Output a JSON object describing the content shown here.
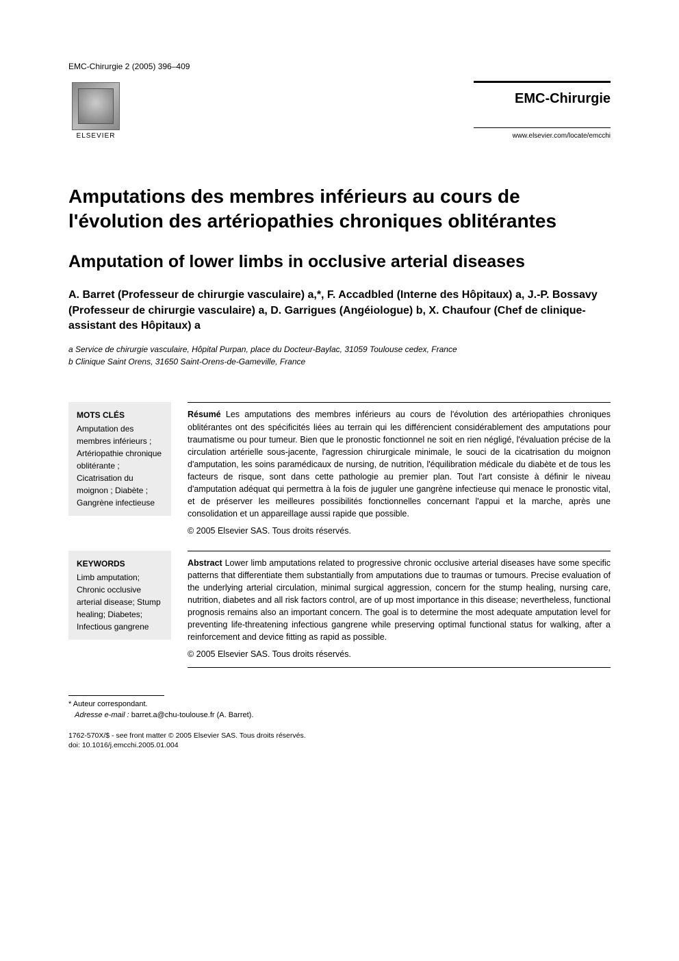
{
  "header": {
    "journal_ref": "EMC-Chirurgie 2 (2005) 396–409",
    "publisher_name": "ELSEVIER",
    "journal_name": "EMC-Chirurgie",
    "journal_url": "www.elsevier.com/locate/emcchi"
  },
  "title": {
    "fr": "Amputations des membres inférieurs au cours de l'évolution des artériopathies chroniques oblitérantes",
    "en": "Amputation of lower limbs in occlusive arterial diseases"
  },
  "authors_line": "A. Barret (Professeur de chirurgie vasculaire) a,*, F. Accadbled (Interne des Hôpitaux) a, J.-P. Bossavy (Professeur de chirurgie vasculaire) a, D. Garrigues (Angéiologue) b, X. Chaufour (Chef de clinique-assistant des Hôpitaux) a",
  "affiliations": {
    "a": "a Service de chirurgie vasculaire, Hôpital Purpan, place du Docteur-Baylac, 31059 Toulouse cedex, France",
    "b": "b Clinique Saint Orens, 31650 Saint-Orens-de-Gameville, France"
  },
  "mots_cles": {
    "heading": "MOTS CLÉS",
    "items": "Amputation des membres inférieurs ; Artériopathie chronique oblitérante ; Cicatrisation du moignon ; Diabète ; Gangrène infectieuse"
  },
  "keywords": {
    "heading": "KEYWORDS",
    "items": "Limb amputation; Chronic occlusive arterial disease; Stump healing; Diabetes; Infectious gangrene"
  },
  "resume": {
    "label": "Résumé",
    "text": " Les amputations des membres inférieurs au cours de l'évolution des artériopathies chroniques oblitérantes ont des spécificités liées au terrain qui les différencient considérablement des amputations pour traumatisme ou pour tumeur. Bien que le pronostic fonctionnel ne soit en rien négligé, l'évaluation précise de la circulation artérielle sous-jacente, l'agression chirurgicale minimale, le souci de la cicatrisation du moignon d'amputation, les soins paramédicaux de nursing, de nutrition, l'équilibration médicale du diabète et de tous les facteurs de risque, sont dans cette pathologie au premier plan. Tout l'art consiste à définir le niveau d'amputation adéquat qui permettra à la fois de juguler une gangrène infectieuse qui menace le pronostic vital, et de préserver les meilleures possibilités fonctionnelles concernant l'appui et la marche, après une consolidation et un appareillage aussi rapide que possible.",
    "copyright": "© 2005 Elsevier SAS. Tous droits réservés."
  },
  "abstract": {
    "label": "Abstract",
    "text": " Lower limb amputations related to progressive chronic occlusive arterial diseases have some specific patterns that differentiate them substantially from amputations due to traumas or tumours. Precise evaluation of the underlying arterial circulation, minimal surgical aggression, concern for the stump healing, nursing care, nutrition, diabetes and all risk factors control, are of up most importance in this disease; nevertheless, functional prognosis remains also an important concern. The goal is to determine the most adequate amputation level for preventing life-threatening infectious gangrene while preserving optimal functional status for walking, after a reinforcement and device fitting as rapid as possible.",
    "copyright": "© 2005 Elsevier SAS. Tous droits réservés."
  },
  "footnotes": {
    "corresponding": "* Auteur correspondant.",
    "email_label": "Adresse e-mail :",
    "email_value": "barret.a@chu-toulouse.fr (A. Barret)."
  },
  "footer": {
    "front_matter": "1762-570X/$ - see front matter © 2005 Elsevier SAS. Tous droits réservés.",
    "doi": "doi: 10.1016/j.emcchi.2005.01.004"
  },
  "styling": {
    "page_bg": "#ffffff",
    "text_color": "#000000",
    "keywords_bg": "#ececec",
    "title_fontsize_fr": 28,
    "title_fontsize_en": 25,
    "body_fontsize": 12.5,
    "keywords_fontsize": 12,
    "footnote_fontsize": 11,
    "footer_fontsize": 10.5,
    "brand_rule_top_width": 3,
    "brand_rule_bottom_width": 1
  }
}
